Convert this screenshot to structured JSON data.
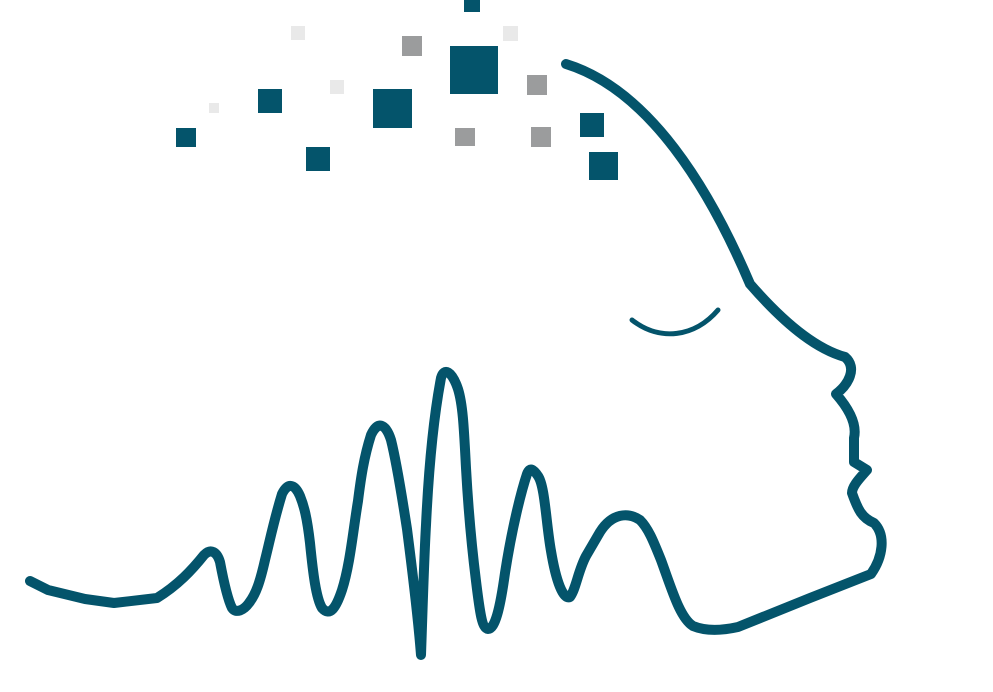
{
  "illustration": {
    "subject": "face-profile-with-sound-wave-and-pixels",
    "colors": {
      "primary": "#04546B",
      "mid_gray": "#9B9C9D",
      "light_gray": "#E9E9E9",
      "background": "#FFFFFF"
    },
    "icons": {
      "face": "face-profile-icon",
      "wave": "sound-wave-icon",
      "eye": "closed-eye-icon",
      "pixels": "pixel-squares-icon"
    }
  }
}
